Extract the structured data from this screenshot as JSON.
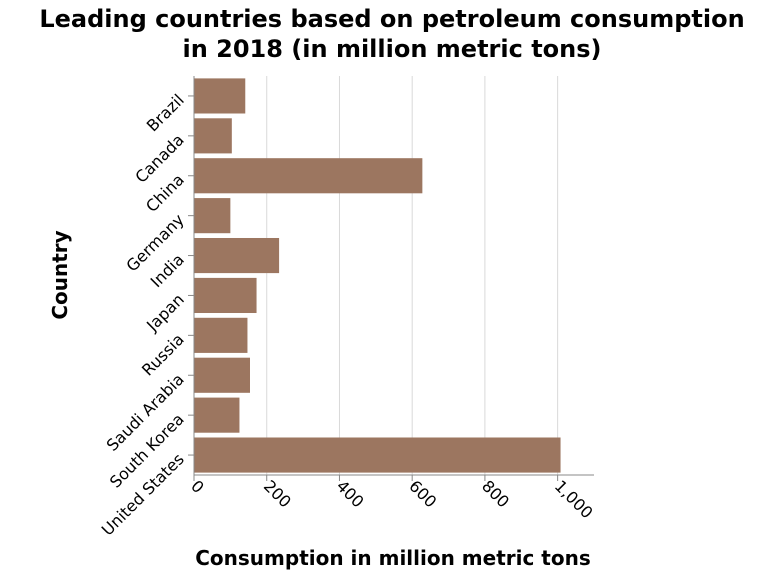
{
  "chart_data": {
    "type": "bar",
    "orientation": "horizontal",
    "title_line1": "Leading countries based on petroleum consumption",
    "title_line2": "in 2018 (in million metric tons)",
    "xlabel": "Consumption in million metric tons",
    "ylabel": "Country",
    "categories": [
      "Brazil",
      "Canada",
      "China",
      "Germany",
      "India",
      "Japan",
      "Russia",
      "Saudi Arabia",
      "South Korea",
      "United States"
    ],
    "values": [
      141,
      104,
      628,
      100,
      234,
      172,
      147,
      154,
      125,
      1008
    ],
    "xlim": [
      0,
      1100
    ],
    "xticks": [
      0,
      200,
      400,
      600,
      800,
      1000
    ],
    "xtick_labels": [
      "0",
      "200",
      "400",
      "600",
      "800",
      "1,000"
    ],
    "grid": "vertical",
    "bar_color": "#9c7660"
  }
}
